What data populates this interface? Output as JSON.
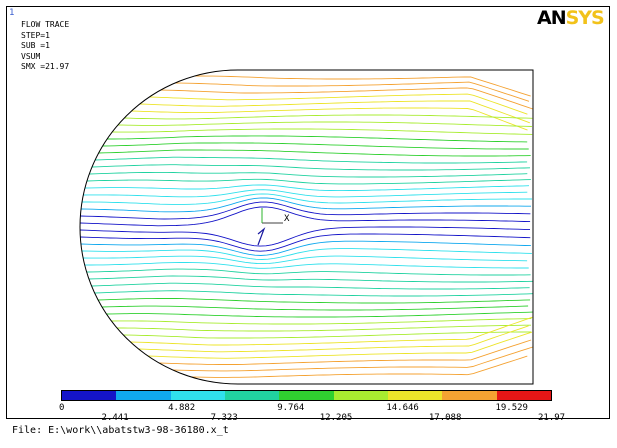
{
  "window": {
    "number": "1"
  },
  "plot_info": {
    "title": "FLOW TRACE",
    "step": "STEP=1",
    "sub": "SUB =1",
    "quantity": "VSUM",
    "smx": "SMX =21.97"
  },
  "logo": {
    "part1": "AN",
    "part2": "SYS"
  },
  "axis_marker": "X",
  "legend": {
    "colors": [
      "#1414c8",
      "#10a8ee",
      "#30e0ec",
      "#21d2a0",
      "#30d030",
      "#a8ec30",
      "#ece42a",
      "#f4a232",
      "#e51616"
    ],
    "ticks_top": [
      "0",
      "4.882",
      "9.764",
      "14.646",
      "19.529"
    ],
    "ticks_bottom": [
      "2.441",
      "7.323",
      "12.205",
      "17.088",
      "21.97"
    ]
  },
  "file_line": "File: E:\\work\\\\abatstw3-98-36180.x_t"
}
